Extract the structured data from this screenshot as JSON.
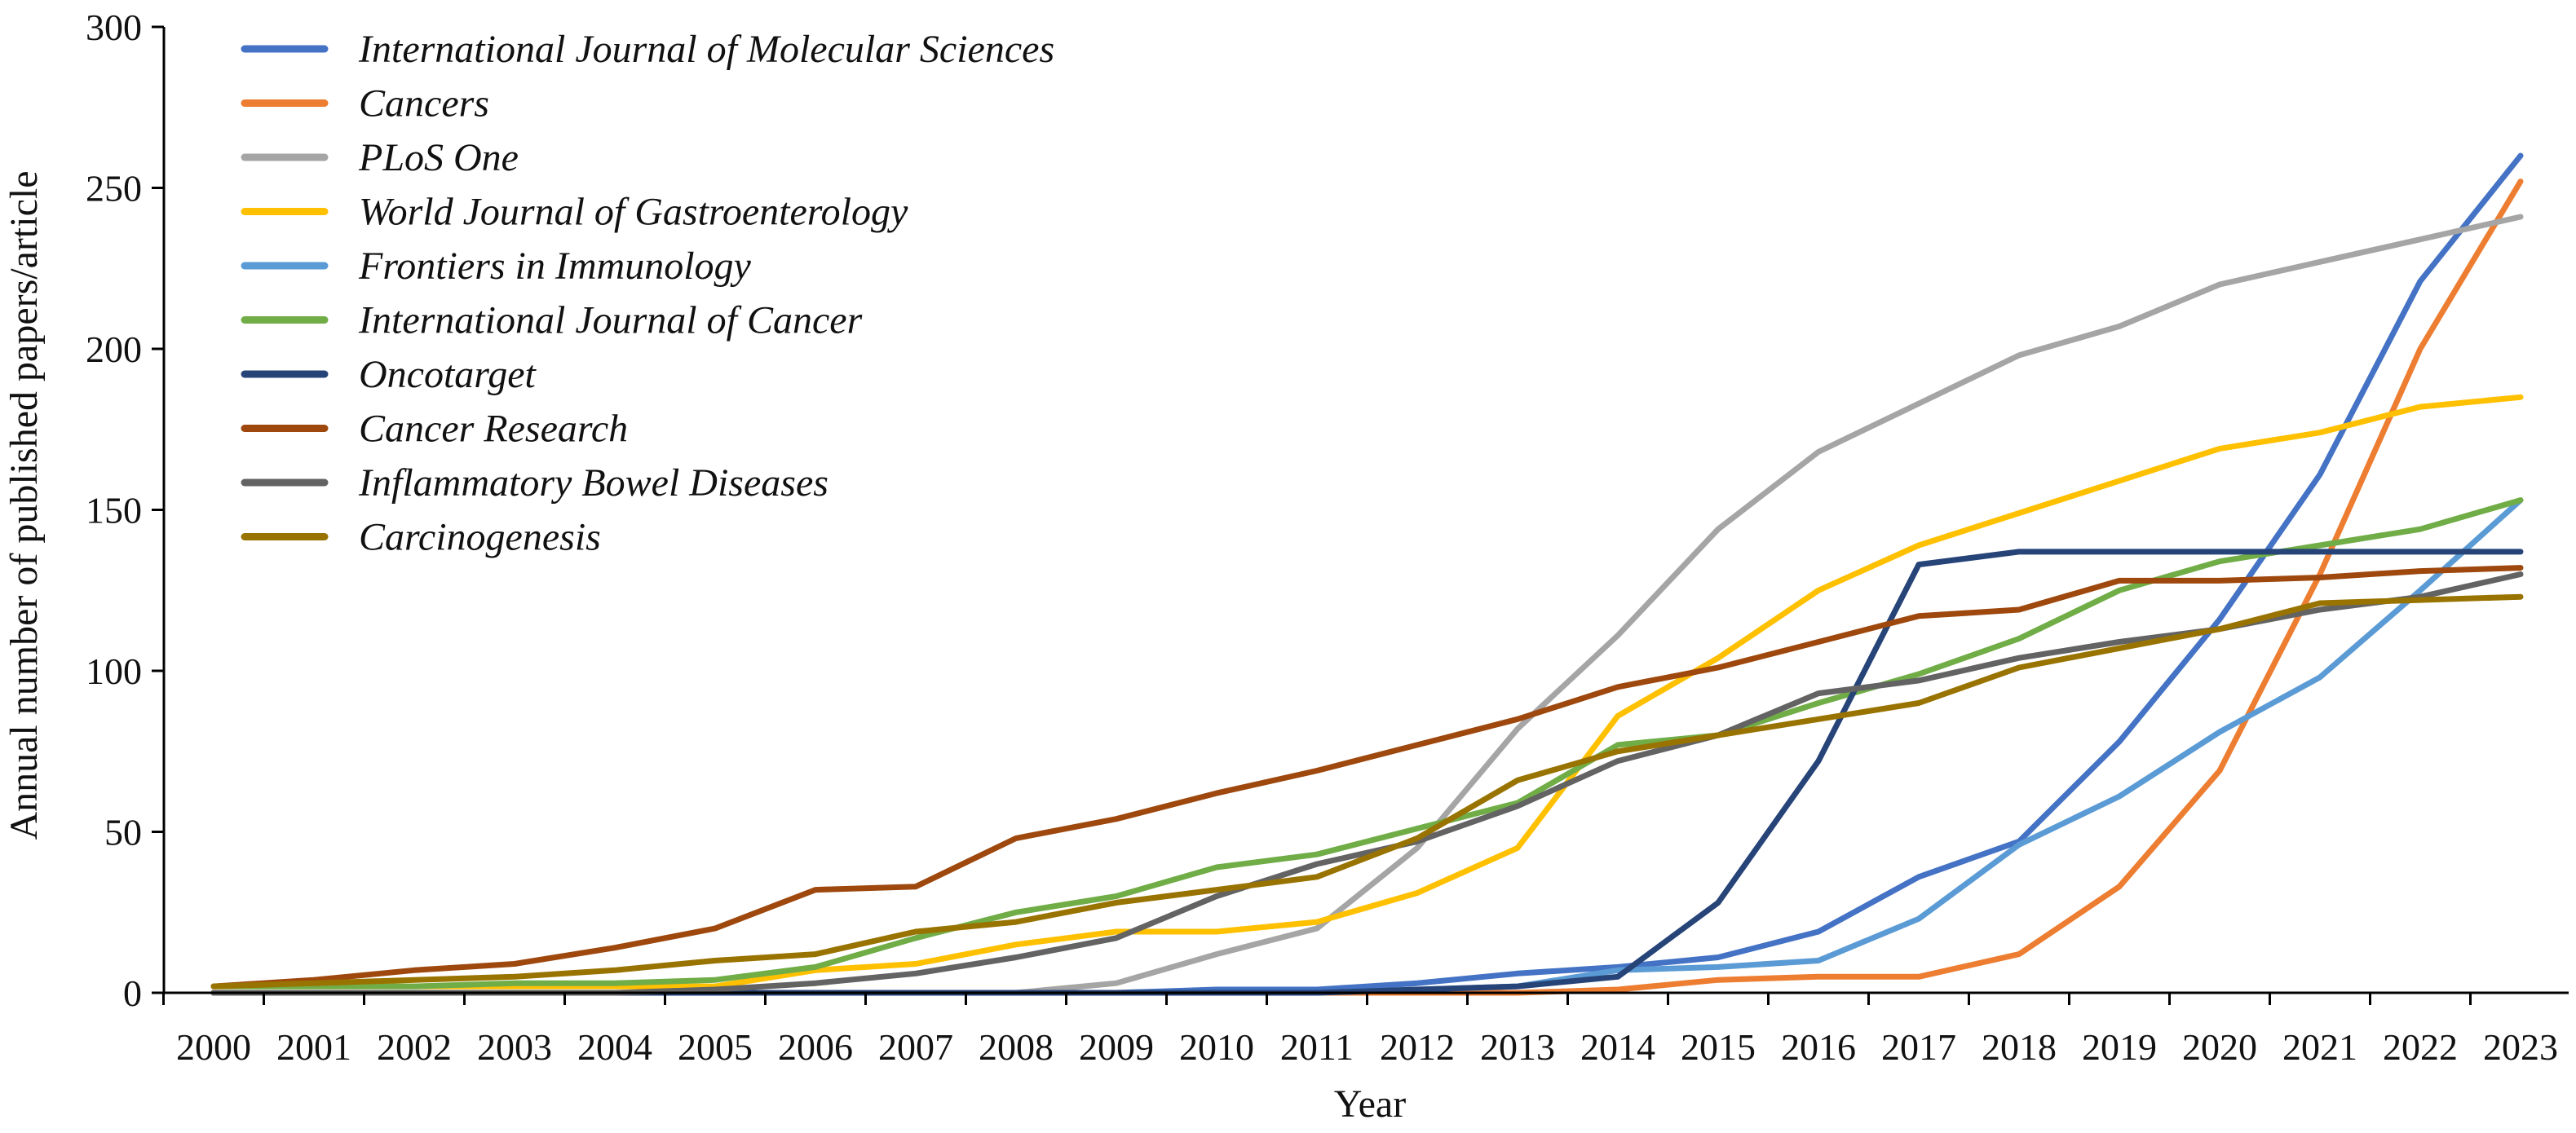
{
  "chart_data": {
    "type": "line",
    "title": "",
    "xlabel": "Year",
    "ylabel": "Annual number of published papers/article",
    "ylim": [
      0,
      300
    ],
    "yticks": [
      "0",
      "50",
      "100",
      "150",
      "200",
      "250",
      "300"
    ],
    "x": [
      "2000",
      "2001",
      "2002",
      "2003",
      "2004",
      "2005",
      "2006",
      "2007",
      "2008",
      "2009",
      "2010",
      "2011",
      "2012",
      "2013",
      "2014",
      "2015",
      "2016",
      "2017",
      "2018",
      "2019",
      "2020",
      "2021",
      "2022",
      "2023"
    ],
    "grid": false,
    "legend_position": "top-left",
    "series": [
      {
        "name": "International Journal of Molecular Sciences",
        "color": "#4472C4",
        "values": [
          0,
          0,
          0,
          0,
          0,
          0,
          0,
          0,
          0,
          0,
          1,
          1,
          3,
          6,
          8,
          11,
          19,
          36,
          47,
          78,
          116,
          161,
          221,
          260
        ]
      },
      {
        "name": "Cancers",
        "color": "#ED7D31",
        "values": [
          0,
          0,
          0,
          0,
          0,
          0,
          0,
          0,
          0,
          0,
          0,
          0,
          0,
          0,
          1,
          4,
          5,
          5,
          12,
          33,
          69,
          130,
          200,
          252
        ]
      },
      {
        "name": "PLoS One",
        "color": "#A5A5A5",
        "values": [
          0,
          0,
          0,
          0,
          0,
          0,
          0,
          0,
          0,
          3,
          12,
          20,
          45,
          82,
          111,
          144,
          168,
          183,
          198,
          207,
          220,
          227,
          234,
          241
        ]
      },
      {
        "name": "World Journal of Gastroenterology",
        "color": "#FFC000",
        "values": [
          2,
          2,
          2,
          2,
          2,
          2,
          7,
          9,
          15,
          19,
          19,
          22,
          31,
          45,
          86,
          104,
          125,
          139,
          149,
          159,
          169,
          174,
          182,
          185
        ]
      },
      {
        "name": "Frontiers in Immunology",
        "color": "#5B9BD5",
        "values": [
          0,
          0,
          0,
          0,
          0,
          0,
          0,
          0,
          0,
          0,
          0,
          0,
          1,
          2,
          7,
          8,
          10,
          23,
          46,
          61,
          81,
          98,
          125,
          153
        ]
      },
      {
        "name": "International Journal of Cancer",
        "color": "#70AD47",
        "values": [
          2,
          2,
          2,
          3,
          3,
          4,
          8,
          17,
          25,
          30,
          39,
          43,
          51,
          59,
          77,
          80,
          90,
          99,
          110,
          125,
          134,
          139,
          144,
          153
        ]
      },
      {
        "name": "Oncotarget",
        "color": "#264478",
        "values": [
          0,
          0,
          0,
          0,
          0,
          0,
          0,
          0,
          0,
          0,
          0,
          0,
          1,
          2,
          5,
          28,
          72,
          133,
          137,
          137,
          137,
          137,
          137,
          137
        ]
      },
      {
        "name": "Cancer Research",
        "color": "#9E480E",
        "values": [
          2,
          4,
          7,
          9,
          14,
          20,
          32,
          33,
          48,
          54,
          62,
          69,
          77,
          85,
          95,
          101,
          109,
          117,
          119,
          128,
          128,
          129,
          131,
          132
        ]
      },
      {
        "name": "Inflammatory Bowel Diseases",
        "color": "#636363",
        "values": [
          0,
          0,
          0,
          0,
          0,
          1,
          3,
          6,
          11,
          17,
          30,
          40,
          47,
          58,
          72,
          80,
          93,
          97,
          104,
          109,
          113,
          119,
          123,
          130
        ]
      },
      {
        "name": "Carcinogenesis",
        "color": "#997300",
        "values": [
          2,
          3,
          4,
          5,
          7,
          10,
          12,
          19,
          22,
          28,
          32,
          36,
          48,
          66,
          75,
          80,
          85,
          90,
          101,
          107,
          113,
          121,
          122,
          123
        ]
      }
    ]
  }
}
